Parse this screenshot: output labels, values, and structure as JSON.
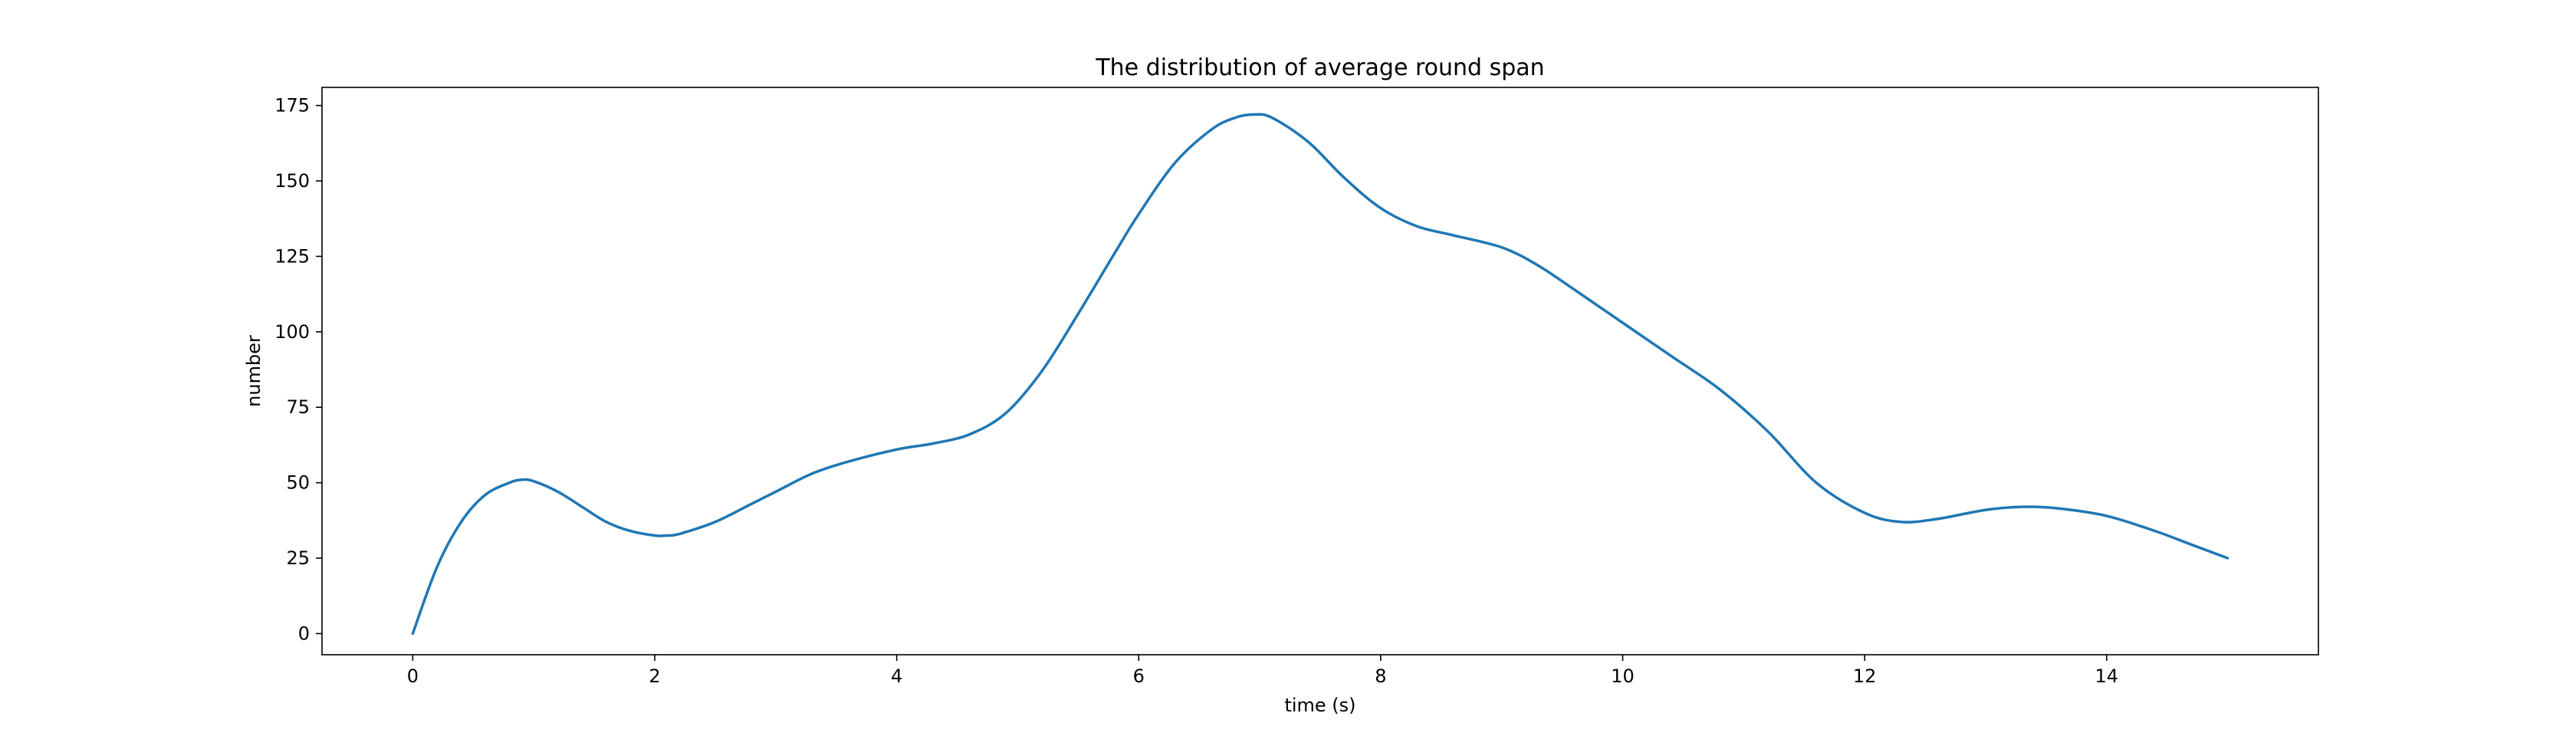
{
  "chart_data": {
    "type": "line",
    "title": "The distribution of average round span",
    "xlabel": "time (s)",
    "ylabel": "number",
    "xlim": [
      -0.75,
      15.75
    ],
    "ylim": [
      -7,
      181
    ],
    "x_ticks": [
      0,
      2,
      4,
      6,
      8,
      10,
      12,
      14
    ],
    "y_ticks": [
      0,
      25,
      50,
      75,
      100,
      125,
      150,
      175
    ],
    "grid": false,
    "legend": "none",
    "line_color": "#1f77b4",
    "series": [
      {
        "x": [
          0,
          0.2,
          0.4,
          0.6,
          0.8,
          0.9,
          1.0,
          1.2,
          1.4,
          1.6,
          1.8,
          2.0,
          2.1,
          2.2,
          2.5,
          2.8,
          3.0,
          3.3,
          3.6,
          4.0,
          4.3,
          4.6,
          4.9,
          5.2,
          5.5,
          5.8,
          6.0,
          6.3,
          6.6,
          6.8,
          6.95,
          7.1,
          7.4,
          7.7,
          8.0,
          8.3,
          8.6,
          9.0,
          9.3,
          9.6,
          10.0,
          10.4,
          10.8,
          11.2,
          11.6,
          12.0,
          12.3,
          12.6,
          13.0,
          13.3,
          13.6,
          14.0,
          14.4,
          14.7,
          15.0
        ],
        "y": [
          0,
          22,
          37,
          46,
          50,
          51,
          50.5,
          47,
          42,
          37,
          34,
          32.5,
          32.5,
          33,
          37,
          43,
          47,
          53,
          57,
          61,
          63,
          66,
          73,
          87,
          106,
          126,
          139,
          156,
          167,
          171,
          172,
          171,
          163,
          151,
          141,
          135,
          132,
          128,
          122,
          114,
          103,
          92,
          81,
          67,
          50,
          40,
          37,
          38,
          41,
          42,
          41.5,
          39,
          34,
          29.5,
          25
        ]
      }
    ]
  }
}
